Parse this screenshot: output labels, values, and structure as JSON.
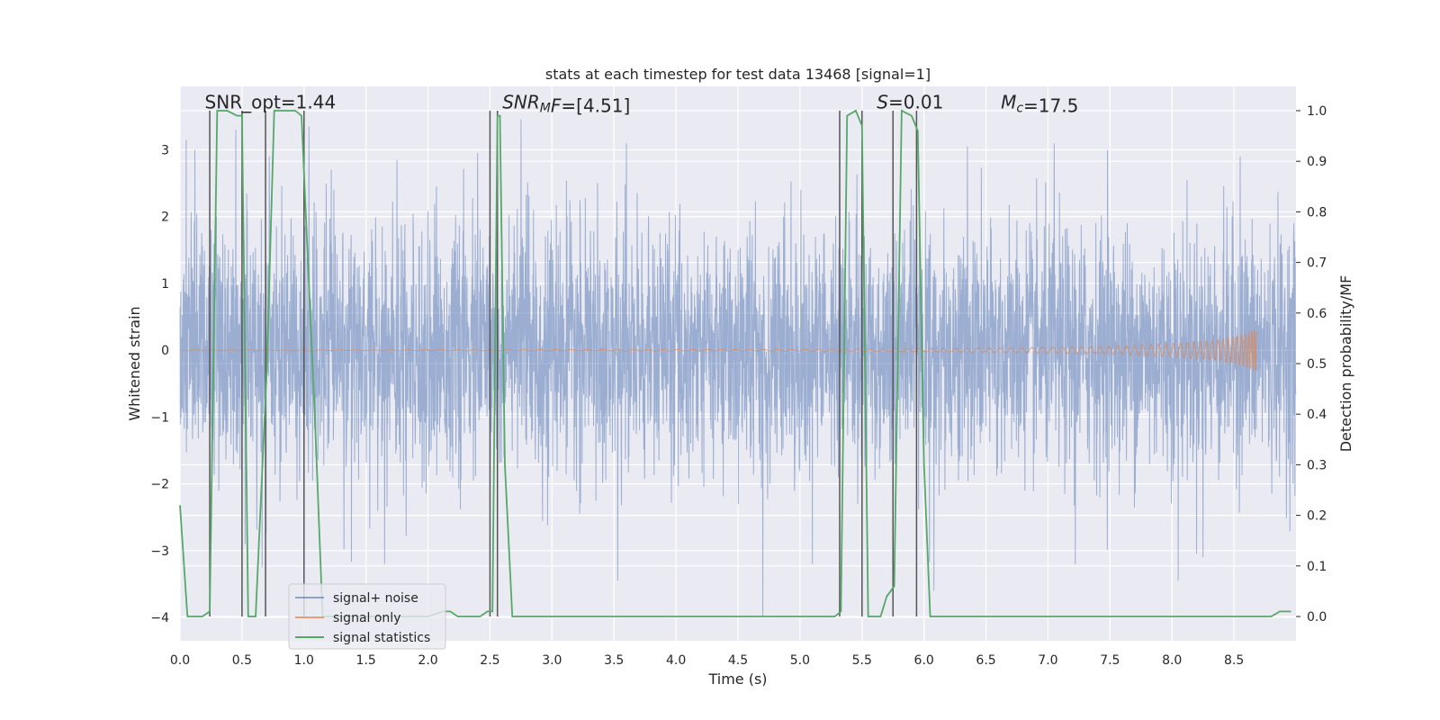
{
  "chart_data": {
    "type": "line",
    "title": "stats at each timestep for test data 13468 [signal=1]",
    "xlabel": "Time (s)",
    "ylabel": "Whitened strain",
    "y2label": "Detection probability/MF",
    "xlim": [
      0.0,
      9.0
    ],
    "ylim": [
      -4.35,
      3.95
    ],
    "y2lim": [
      -0.048,
      1.048
    ],
    "x_ticks": [
      0.0,
      0.5,
      1.0,
      1.5,
      2.0,
      2.5,
      3.0,
      3.5,
      4.0,
      4.5,
      5.0,
      5.5,
      6.0,
      6.5,
      7.0,
      7.5,
      8.0,
      8.5
    ],
    "x_tick_labels": [
      "0.0",
      "0.5",
      "1.0",
      "1.5",
      "2.0",
      "2.5",
      "3.0",
      "3.5",
      "4.0",
      "4.5",
      "5.0",
      "5.5",
      "6.0",
      "6.5",
      "7.0",
      "7.5",
      "8.0",
      "8.5"
    ],
    "y_ticks": [
      3,
      2,
      1,
      0,
      -1,
      -2,
      -3,
      -4
    ],
    "y_tick_labels": [
      "3",
      "2",
      "1",
      "0",
      "−1",
      "−2",
      "−3",
      "−4"
    ],
    "y2_ticks": [
      1.0,
      0.9,
      0.8,
      0.7,
      0.6,
      0.5,
      0.4,
      0.3,
      0.2,
      0.1,
      0.0
    ],
    "y2_tick_labels": [
      "1.0",
      "0.9",
      "0.8",
      "0.7",
      "0.6",
      "0.5",
      "0.4",
      "0.3",
      "0.2",
      "0.1",
      "0.0"
    ],
    "grid": true,
    "legend_placement": "lower-left",
    "annotations": [
      {
        "segments": [
          {
            "text": "SNR_opt=1.44",
            "italic": false
          }
        ],
        "x": 0.2,
        "y": 3.62
      },
      {
        "segments": [
          {
            "text": "SNR",
            "italic": true
          },
          {
            "text": "M",
            "italic": true,
            "sub": true
          },
          {
            "text": "F",
            "italic": true
          },
          {
            "text": "=[4.51]",
            "italic": false
          }
        ],
        "x": 2.6,
        "y": 3.62
      },
      {
        "segments": [
          {
            "text": "S",
            "italic": true
          },
          {
            "text": "=0.01",
            "italic": false
          }
        ],
        "x": 5.62,
        "y": 3.62
      },
      {
        "segments": [
          {
            "text": "M",
            "italic": true
          },
          {
            "text": "c",
            "italic": true,
            "sub": true
          },
          {
            "text": "=17.5",
            "italic": false
          }
        ],
        "x": 6.62,
        "y": 3.62
      }
    ],
    "colors": {
      "background": "#eaeaf2",
      "grid": "#ffffff",
      "noise": "#4c72b0",
      "signal": "#dd8452",
      "stats": "#55a868",
      "vlines": "#555555"
    },
    "series": [
      {
        "name": "signal+ noise",
        "kind": "noise",
        "x_range": [
          0.0,
          9.0
        ],
        "core_amplitude": 1.25,
        "max_amplitude": 3.4,
        "spike_events": [
          {
            "x": 0.05,
            "y": 3.15
          },
          {
            "x": 0.12,
            "y": 3.0
          },
          {
            "x": 0.45,
            "y": 3.3
          },
          {
            "x": 0.72,
            "y": 2.9
          },
          {
            "x": 1.04,
            "y": 3.35
          },
          {
            "x": 1.22,
            "y": 2.7
          },
          {
            "x": 1.65,
            "y": -3.2
          },
          {
            "x": 1.75,
            "y": 2.85
          },
          {
            "x": 2.4,
            "y": 2.95
          },
          {
            "x": 2.75,
            "y": 3.45
          },
          {
            "x": 3.6,
            "y": 3.1
          },
          {
            "x": 3.53,
            "y": -3.45
          },
          {
            "x": 4.7,
            "y": -4.0
          },
          {
            "x": 5.1,
            "y": -3.2
          },
          {
            "x": 6.08,
            "y": -3.6
          },
          {
            "x": 6.35,
            "y": 3.05
          },
          {
            "x": 7.05,
            "y": 3.1
          },
          {
            "x": 7.22,
            "y": -3.2
          },
          {
            "x": 7.48,
            "y": 3.0
          },
          {
            "x": 8.05,
            "y": -3.45
          },
          {
            "x": 8.55,
            "y": 2.9
          },
          {
            "x": 8.25,
            "y": -3.1
          }
        ]
      },
      {
        "name": "signal only",
        "kind": "chirp",
        "x_range": [
          0.0,
          8.68
        ],
        "amplitude_points": [
          [
            0.0,
            0.002
          ],
          [
            5.0,
            0.01
          ],
          [
            6.5,
            0.03
          ],
          [
            7.5,
            0.06
          ],
          [
            8.0,
            0.1
          ],
          [
            8.4,
            0.16
          ],
          [
            8.6,
            0.25
          ],
          [
            8.68,
            0.32
          ]
        ]
      },
      {
        "name": "signal statistics",
        "kind": "probability",
        "axis": "y2",
        "x": [
          0.0,
          0.06,
          0.18,
          0.24,
          0.3,
          0.38,
          0.46,
          0.5,
          0.55,
          0.61,
          0.7,
          0.76,
          0.84,
          0.93,
          0.98,
          1.03,
          1.09,
          1.15,
          1.2,
          1.4,
          1.6,
          1.8,
          2.0,
          2.12,
          2.18,
          2.24,
          2.3,
          2.42,
          2.48,
          2.52,
          2.56,
          2.58,
          2.62,
          2.68,
          2.75,
          2.85,
          3.0,
          4.0,
          5.0,
          5.28,
          5.33,
          5.38,
          5.45,
          5.5,
          5.55,
          5.65,
          5.7,
          5.76,
          5.82,
          5.9,
          5.95,
          6.0,
          6.05,
          6.2,
          6.5,
          6.8,
          6.9,
          7.0,
          7.5,
          8.0,
          8.1,
          8.5,
          8.8,
          8.87,
          8.96
        ],
        "y": [
          0.22,
          0.0,
          0.0,
          0.01,
          1.0,
          1.0,
          0.99,
          0.99,
          0.0,
          0.0,
          0.49,
          1.0,
          1.0,
          1.0,
          0.99,
          0.71,
          0.38,
          0.0,
          0.0,
          0.0,
          0.0,
          0.0,
          0.0,
          0.01,
          0.01,
          0.0,
          0.0,
          0.0,
          0.01,
          0.01,
          0.99,
          0.99,
          0.3,
          0.0,
          0.0,
          0.0,
          0.0,
          0.0,
          0.0,
          0.0,
          0.01,
          0.99,
          1.0,
          0.97,
          0.0,
          0.0,
          0.04,
          0.06,
          1.0,
          0.99,
          0.96,
          0.3,
          0.0,
          0.0,
          0.0,
          0.0,
          0.0,
          0.0,
          0.0,
          0.0,
          0.0,
          0.0,
          0.0,
          0.01,
          0.01
        ]
      }
    ],
    "vertical_lines": [
      {
        "x": 0.24,
        "y2": [
          0.0,
          1.0
        ]
      },
      {
        "x": 0.5,
        "y2": [
          0.0,
          1.0
        ]
      },
      {
        "x": 0.69,
        "y2": [
          0.0,
          1.0
        ]
      },
      {
        "x": 1.0,
        "y2": [
          0.0,
          1.0
        ]
      },
      {
        "x": 2.5,
        "y2": [
          0.0,
          1.0
        ]
      },
      {
        "x": 2.56,
        "y2": [
          0.0,
          1.0
        ]
      },
      {
        "x": 5.32,
        "y2": [
          0.0,
          1.0
        ]
      },
      {
        "x": 5.5,
        "y2": [
          0.0,
          1.0
        ]
      },
      {
        "x": 5.75,
        "y2": [
          0.0,
          1.0
        ]
      },
      {
        "x": 5.94,
        "y2": [
          0.0,
          1.0
        ]
      }
    ]
  }
}
